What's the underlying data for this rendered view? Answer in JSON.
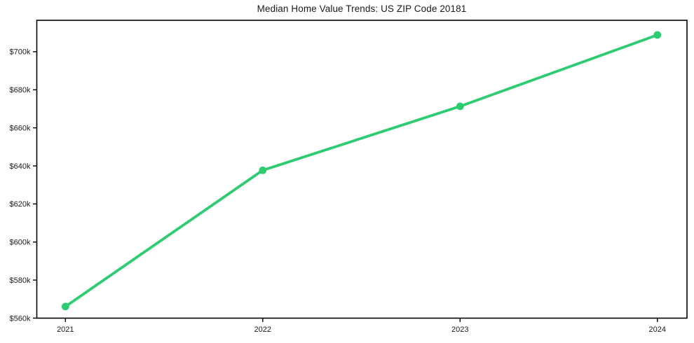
{
  "page": {
    "background": "#ffffff"
  },
  "chart_data": {
    "type": "line",
    "title": "Median Home Value Trends: US ZIP Code 20181",
    "xlabel": "",
    "ylabel": "",
    "x": [
      2021,
      2022,
      2023,
      2024
    ],
    "series": [
      {
        "name": "Median Home Value",
        "values": [
          566100,
          637700,
          671300,
          708800
        ]
      }
    ],
    "xtick_labels": [
      "2021",
      "2022",
      "2023",
      "2024"
    ],
    "ytick_values": [
      560000,
      580000,
      600000,
      620000,
      640000,
      660000,
      680000,
      700000
    ],
    "ytick_labels": [
      "$560k",
      "$580k",
      "$600k",
      "$620k",
      "$640k",
      "$660k",
      "$680k",
      "$700k"
    ],
    "xlim": [
      2020.855,
      2024.15
    ],
    "ylim": [
      560000,
      716500
    ],
    "grid": false,
    "legend": "none",
    "line_color": "#2ecc71",
    "marker": "circle",
    "axis_color": "#000000",
    "text_color": "#1a1a1a"
  }
}
